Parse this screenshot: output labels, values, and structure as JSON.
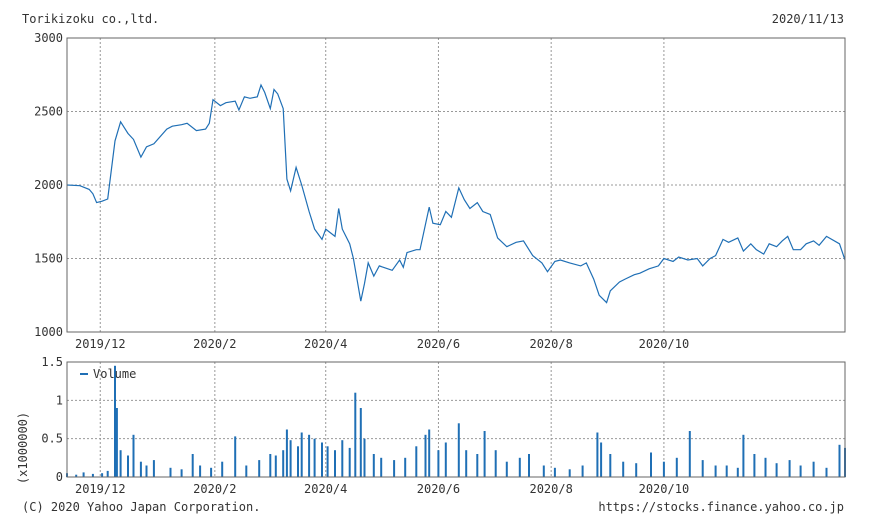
{
  "header": {
    "title": "Torikizoku co.,ltd.",
    "date": "2020/11/13"
  },
  "footer": {
    "copyright": "(C) 2020 Yahoo Japan Corporation.",
    "url": "https://stocks.finance.yahoo.co.jp"
  },
  "colors": {
    "line": "#1f6fb5",
    "bar": "#1f6fb5",
    "grid": "#999999",
    "frame": "#666666"
  },
  "chart_data": [
    {
      "type": "line",
      "ylim": [
        1000,
        3000
      ],
      "y_ticks": [
        1000,
        1500,
        2000,
        2500,
        3000
      ],
      "x_ticks": [
        "2019/12",
        "2020/2",
        "2020/4",
        "2020/6",
        "2020/8",
        "2020/10"
      ],
      "grid": true,
      "points": [
        [
          "2019-11-13",
          2000
        ],
        [
          "2019-11-20",
          1995
        ],
        [
          "2019-11-25",
          1970
        ],
        [
          "2019-11-27",
          1940
        ],
        [
          "2019-11-29",
          1880
        ],
        [
          "2019-12-02",
          1890
        ],
        [
          "2019-12-05",
          1905
        ],
        [
          "2019-12-09",
          2300
        ],
        [
          "2019-12-12",
          2430
        ],
        [
          "2019-12-16",
          2350
        ],
        [
          "2019-12-19",
          2310
        ],
        [
          "2019-12-23",
          2190
        ],
        [
          "2019-12-26",
          2260
        ],
        [
          "2019-12-30",
          2280
        ],
        [
          "2020-01-06",
          2380
        ],
        [
          "2020-01-09",
          2400
        ],
        [
          "2020-01-14",
          2410
        ],
        [
          "2020-01-17",
          2420
        ],
        [
          "2020-01-22",
          2370
        ],
        [
          "2020-01-27",
          2380
        ],
        [
          "2020-01-29",
          2420
        ],
        [
          "2020-01-31",
          2580
        ],
        [
          "2020-02-04",
          2540
        ],
        [
          "2020-02-07",
          2560
        ],
        [
          "2020-02-12",
          2570
        ],
        [
          "2020-02-14",
          2510
        ],
        [
          "2020-02-17",
          2600
        ],
        [
          "2020-02-20",
          2590
        ],
        [
          "2020-02-24",
          2600
        ],
        [
          "2020-02-26",
          2680
        ],
        [
          "2020-02-28",
          2630
        ],
        [
          "2020-03-02",
          2520
        ],
        [
          "2020-03-04",
          2650
        ],
        [
          "2020-03-06",
          2620
        ],
        [
          "2020-03-09",
          2520
        ],
        [
          "2020-03-11",
          2040
        ],
        [
          "2020-03-13",
          1960
        ],
        [
          "2020-03-16",
          2120
        ],
        [
          "2020-03-19",
          2000
        ],
        [
          "2020-03-23",
          1820
        ],
        [
          "2020-03-26",
          1700
        ],
        [
          "2020-03-30",
          1630
        ],
        [
          "2020-04-01",
          1700
        ],
        [
          "2020-04-06",
          1650
        ],
        [
          "2020-04-08",
          1840
        ],
        [
          "2020-04-10",
          1700
        ],
        [
          "2020-04-14",
          1600
        ],
        [
          "2020-04-16",
          1500
        ],
        [
          "2020-04-20",
          1210
        ],
        [
          "2020-04-22",
          1330
        ],
        [
          "2020-04-24",
          1470
        ],
        [
          "2020-04-27",
          1380
        ],
        [
          "2020-04-30",
          1450
        ],
        [
          "2020-05-07",
          1420
        ],
        [
          "2020-05-11",
          1490
        ],
        [
          "2020-05-13",
          1440
        ],
        [
          "2020-05-15",
          1540
        ],
        [
          "2020-05-20",
          1560
        ],
        [
          "2020-05-22",
          1560
        ],
        [
          "2020-05-27",
          1850
        ],
        [
          "2020-05-29",
          1740
        ],
        [
          "2020-06-02",
          1730
        ],
        [
          "2020-06-05",
          1820
        ],
        [
          "2020-06-08",
          1780
        ],
        [
          "2020-06-12",
          1980
        ],
        [
          "2020-06-15",
          1900
        ],
        [
          "2020-06-18",
          1840
        ],
        [
          "2020-06-22",
          1880
        ],
        [
          "2020-06-25",
          1820
        ],
        [
          "2020-06-29",
          1800
        ],
        [
          "2020-07-03",
          1640
        ],
        [
          "2020-07-08",
          1580
        ],
        [
          "2020-07-13",
          1610
        ],
        [
          "2020-07-17",
          1620
        ],
        [
          "2020-07-22",
          1520
        ],
        [
          "2020-07-27",
          1470
        ],
        [
          "2020-07-30",
          1410
        ],
        [
          "2020-08-03",
          1480
        ],
        [
          "2020-08-06",
          1490
        ],
        [
          "2020-08-11",
          1470
        ],
        [
          "2020-08-17",
          1450
        ],
        [
          "2020-08-20",
          1470
        ],
        [
          "2020-08-24",
          1360
        ],
        [
          "2020-08-27",
          1250
        ],
        [
          "2020-08-31",
          1200
        ],
        [
          "2020-09-02",
          1280
        ],
        [
          "2020-09-07",
          1340
        ],
        [
          "2020-09-10",
          1360
        ],
        [
          "2020-09-15",
          1390
        ],
        [
          "2020-09-18",
          1400
        ],
        [
          "2020-09-23",
          1430
        ],
        [
          "2020-09-28",
          1450
        ],
        [
          "2020-10-01",
          1500
        ],
        [
          "2020-10-06",
          1480
        ],
        [
          "2020-10-09",
          1510
        ],
        [
          "2020-10-14",
          1490
        ],
        [
          "2020-10-19",
          1500
        ],
        [
          "2020-10-22",
          1450
        ],
        [
          "2020-10-26",
          1500
        ],
        [
          "2020-10-29",
          1520
        ],
        [
          "2020-11-02",
          1630
        ],
        [
          "2020-11-05",
          1610
        ],
        [
          "2020-11-10",
          1640
        ],
        [
          "2020-11-13",
          1550
        ],
        [
          "2020-11-17",
          1600
        ],
        [
          "2020-11-20",
          1560
        ],
        [
          "2020-11-24",
          1530
        ],
        [
          "2020-11-27",
          1600
        ],
        [
          "2020-12-01",
          1580
        ],
        [
          "2020-12-04",
          1620
        ],
        [
          "2020-12-07",
          1650
        ],
        [
          "2020-12-10",
          1560
        ],
        [
          "2020-12-14",
          1560
        ],
        [
          "2020-12-17",
          1600
        ],
        [
          "2020-12-21",
          1620
        ],
        [
          "2020-12-24",
          1590
        ],
        [
          "2020-12-28",
          1650
        ],
        [
          "2021-01-04",
          1600
        ],
        [
          "2021-01-07",
          1490
        ]
      ]
    },
    {
      "type": "bar",
      "ylabel": "(x1000000)",
      "ylim": [
        0,
        1.5
      ],
      "y_ticks": [
        0,
        0.5,
        1,
        1.5
      ],
      "y_tick_labels": [
        "0",
        "0.5",
        "1",
        "1.5"
      ],
      "x_ticks": [
        "2019/12",
        "2020/2",
        "2020/4",
        "2020/6",
        "2020/8",
        "2020/10"
      ],
      "legend": "Volume",
      "legend_position": "top-left",
      "grid": true,
      "points": [
        [
          "2019-11-13",
          0.05
        ],
        [
          "2019-11-18",
          0.03
        ],
        [
          "2019-11-22",
          0.06
        ],
        [
          "2019-11-27",
          0.04
        ],
        [
          "2019-12-02",
          0.05
        ],
        [
          "2019-12-05",
          0.08
        ],
        [
          "2019-12-09",
          1.45
        ],
        [
          "2019-12-10",
          0.9
        ],
        [
          "2019-12-12",
          0.35
        ],
        [
          "2019-12-16",
          0.28
        ],
        [
          "2019-12-19",
          0.55
        ],
        [
          "2019-12-23",
          0.2
        ],
        [
          "2019-12-26",
          0.15
        ],
        [
          "2019-12-30",
          0.22
        ],
        [
          "2020-01-08",
          0.12
        ],
        [
          "2020-01-14",
          0.1
        ],
        [
          "2020-01-20",
          0.3
        ],
        [
          "2020-01-24",
          0.15
        ],
        [
          "2020-01-30",
          0.12
        ],
        [
          "2020-02-05",
          0.2
        ],
        [
          "2020-02-12",
          0.53
        ],
        [
          "2020-02-18",
          0.15
        ],
        [
          "2020-02-25",
          0.22
        ],
        [
          "2020-03-02",
          0.3
        ],
        [
          "2020-03-05",
          0.28
        ],
        [
          "2020-03-09",
          0.35
        ],
        [
          "2020-03-11",
          0.62
        ],
        [
          "2020-03-13",
          0.48
        ],
        [
          "2020-03-17",
          0.4
        ],
        [
          "2020-03-19",
          0.58
        ],
        [
          "2020-03-23",
          0.55
        ],
        [
          "2020-03-26",
          0.5
        ],
        [
          "2020-03-30",
          0.45
        ],
        [
          "2020-04-02",
          0.4
        ],
        [
          "2020-04-06",
          0.35
        ],
        [
          "2020-04-10",
          0.48
        ],
        [
          "2020-04-14",
          0.38
        ],
        [
          "2020-04-17",
          1.1
        ],
        [
          "2020-04-20",
          0.9
        ],
        [
          "2020-04-22",
          0.5
        ],
        [
          "2020-04-27",
          0.3
        ],
        [
          "2020-05-01",
          0.25
        ],
        [
          "2020-05-08",
          0.22
        ],
        [
          "2020-05-14",
          0.25
        ],
        [
          "2020-05-20",
          0.4
        ],
        [
          "2020-05-25",
          0.55
        ],
        [
          "2020-05-27",
          0.62
        ],
        [
          "2020-06-01",
          0.35
        ],
        [
          "2020-06-05",
          0.45
        ],
        [
          "2020-06-12",
          0.7
        ],
        [
          "2020-06-16",
          0.35
        ],
        [
          "2020-06-22",
          0.3
        ],
        [
          "2020-06-26",
          0.6
        ],
        [
          "2020-07-02",
          0.35
        ],
        [
          "2020-07-08",
          0.2
        ],
        [
          "2020-07-15",
          0.25
        ],
        [
          "2020-07-20",
          0.3
        ],
        [
          "2020-07-28",
          0.15
        ],
        [
          "2020-08-03",
          0.12
        ],
        [
          "2020-08-11",
          0.1
        ],
        [
          "2020-08-18",
          0.15
        ],
        [
          "2020-08-26",
          0.58
        ],
        [
          "2020-08-28",
          0.45
        ],
        [
          "2020-09-02",
          0.3
        ],
        [
          "2020-09-09",
          0.2
        ],
        [
          "2020-09-16",
          0.18
        ],
        [
          "2020-09-24",
          0.32
        ],
        [
          "2020-10-01",
          0.2
        ],
        [
          "2020-10-08",
          0.25
        ],
        [
          "2020-10-15",
          0.6
        ],
        [
          "2020-10-22",
          0.22
        ],
        [
          "2020-10-29",
          0.15
        ],
        [
          "2020-11-04",
          0.15
        ],
        [
          "2020-11-10",
          0.12
        ],
        [
          "2020-11-13",
          0.55
        ],
        [
          "2020-11-19",
          0.3
        ],
        [
          "2020-11-25",
          0.25
        ],
        [
          "2020-12-01",
          0.18
        ],
        [
          "2020-12-08",
          0.22
        ],
        [
          "2020-12-14",
          0.15
        ],
        [
          "2020-12-21",
          0.2
        ],
        [
          "2020-12-28",
          0.12
        ],
        [
          "2021-01-04",
          0.42
        ],
        [
          "2021-01-07",
          0.38
        ]
      ]
    }
  ]
}
